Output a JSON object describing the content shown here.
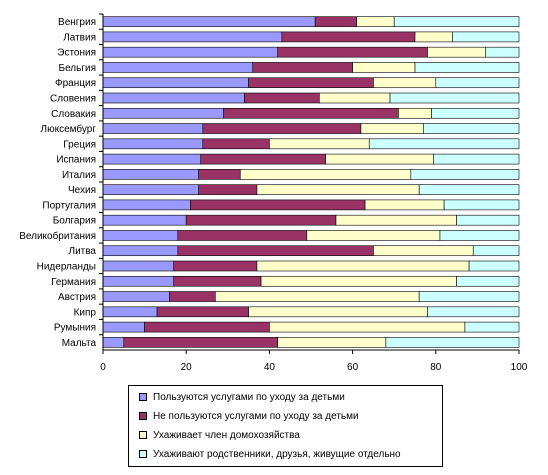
{
  "chart_data": {
    "type": "bar",
    "orientation": "horizontal",
    "stacked": true,
    "categories": [
      "Венгрия",
      "Латвия",
      "Эстония",
      "Бельгия",
      "Франция",
      "Словения",
      "Словакия",
      "Люксембург",
      "Греция",
      "Испания",
      "Италия",
      "Чехия",
      "Португалия",
      "Болгария",
      "Великобритания",
      "Литва",
      "Нидерланды",
      "Германия",
      "Австрия",
      "Кипр",
      "Румыния",
      "Мальта"
    ],
    "series": [
      {
        "name": "Пользуются услугами по уходу за детьми",
        "color": "#9999ff",
        "values": [
          51,
          43,
          42,
          36,
          35,
          34,
          29,
          24,
          24,
          23.5,
          23,
          23,
          21,
          20,
          18,
          18,
          17,
          17,
          16,
          13,
          10,
          5
        ]
      },
      {
        "name": "Не пользуются услугами по уходу за детьми",
        "color": "#993366",
        "values": [
          10,
          32,
          36,
          24,
          30,
          18,
          42,
          38,
          16,
          30,
          10,
          14,
          42,
          36,
          31,
          47,
          20,
          21,
          11,
          22,
          30,
          37
        ]
      },
      {
        "name": "Ухаживает член домохозяйства",
        "color": "#ffffcc",
        "values": [
          9,
          9,
          14,
          15,
          15,
          17,
          8,
          15,
          24,
          26,
          41,
          39,
          19,
          29,
          32,
          24,
          51,
          47,
          49,
          43,
          47,
          26
        ]
      },
      {
        "name": "Ухаживают родственники, друзья, живущие отдельно",
        "color": "#ccffff",
        "values": [
          30,
          16,
          8,
          25,
          20,
          31,
          21,
          23,
          36,
          20.5,
          26,
          24,
          18,
          15,
          19,
          11,
          12,
          15,
          24,
          22,
          13,
          32
        ]
      }
    ],
    "xlim": [
      0,
      100
    ],
    "xticks": [
      "0",
      "20",
      "40",
      "60",
      "80",
      "100"
    ],
    "title": "",
    "xlabel": "",
    "ylabel": "",
    "grid": false,
    "legend_position": "bottom"
  }
}
